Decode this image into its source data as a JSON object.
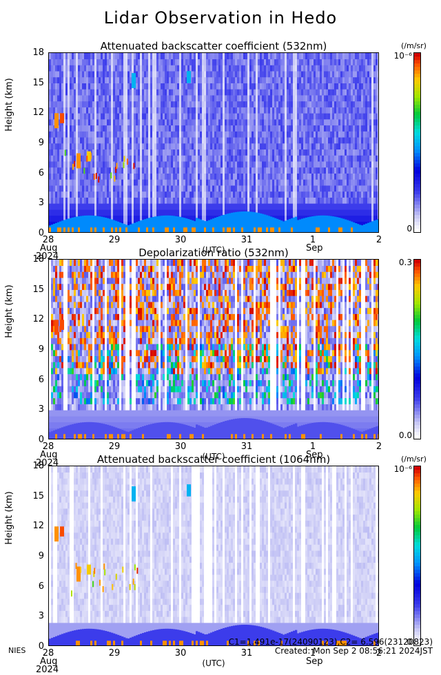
{
  "title": "Lidar Observation in Hedo",
  "x_axis": {
    "ticks": [
      "28",
      "29",
      "30",
      "31",
      "1",
      "2"
    ],
    "month_labels": [
      {
        "text": "Aug",
        "year": "2024"
      },
      {
        "text": "Sep",
        "year": ""
      }
    ],
    "label": "(UTC)"
  },
  "y_axis": {
    "label": "Height (km)",
    "ticks": [
      "0",
      "3",
      "6",
      "9",
      "12",
      "15",
      "18"
    ]
  },
  "panels": [
    {
      "title": "Attenuated backscatter coefficient (532nm)",
      "unit": "(/m/sr)",
      "cmax": "10⁻⁶",
      "cmin": "0",
      "kind": "bsc"
    },
    {
      "title": "Depolarization ratio (532nm)",
      "unit": "",
      "cmax": "0.3",
      "cmin": "0.0",
      "kind": "dep"
    },
    {
      "title": "Attenuated backscatter coefficient (1064nm)",
      "unit": "(/m/sr)",
      "cmax": "10⁻⁶",
      "cmin": "0",
      "kind": "bsc2"
    }
  ],
  "footer": {
    "left": "NIES",
    "line1": "C1=1.491e-17(24090123),C2= 6.596(23120823)",
    "line2": "Created: Mon Sep  2 08:56:21 2024JST"
  },
  "chart_data": [
    {
      "type": "heatmap",
      "title": "Attenuated backscatter coefficient (532nm)",
      "xlabel": "(UTC)",
      "ylabel": "Height (km)",
      "x_range": [
        "2024-08-28",
        "2024-09-02"
      ],
      "ylim": [
        0,
        18
      ],
      "color_range": [
        0,
        1e-06
      ],
      "colorbar_label": "(/m/sr)"
    },
    {
      "type": "heatmap",
      "title": "Depolarization ratio (532nm)",
      "xlabel": "(UTC)",
      "ylabel": "Height (km)",
      "x_range": [
        "2024-08-28",
        "2024-09-02"
      ],
      "ylim": [
        0,
        18
      ],
      "color_range": [
        0.0,
        0.3
      ]
    },
    {
      "type": "heatmap",
      "title": "Attenuated backscatter coefficient (1064nm)",
      "xlabel": "(UTC)",
      "ylabel": "Height (km)",
      "x_range": [
        "2024-08-28",
        "2024-09-02"
      ],
      "ylim": [
        0,
        18
      ],
      "color_range": [
        0,
        1e-06
      ],
      "colorbar_label": "(/m/sr)"
    }
  ]
}
